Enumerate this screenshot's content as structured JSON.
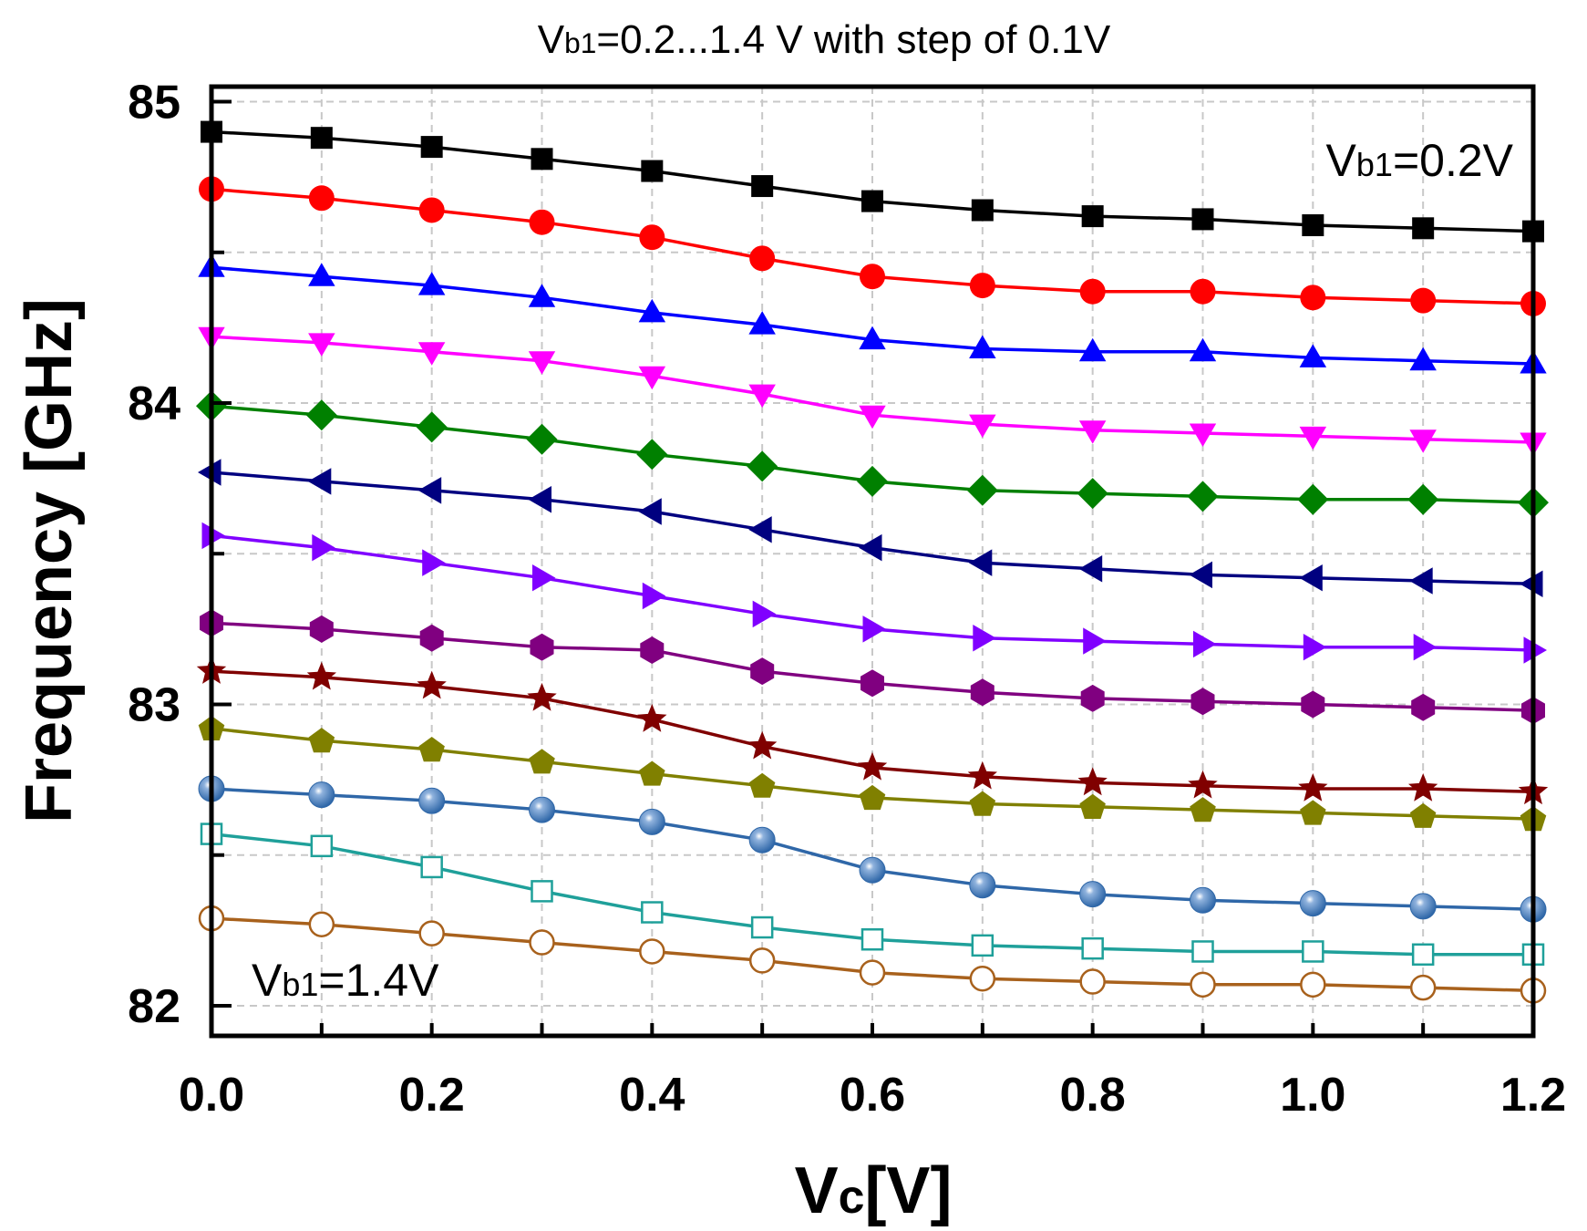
{
  "chart_data": {
    "type": "line",
    "title": {
      "prefix": "V",
      "sub": "b1",
      "suffix": "=0.2...1.4 V with step of 0.1V"
    },
    "xlabel": {
      "main": "V",
      "sub": "c",
      "suffix": "[V]"
    },
    "ylabel": "Frequency [GHz]",
    "xlim": [
      0.0,
      1.2
    ],
    "ylim": [
      81.9,
      85.05
    ],
    "xticks": [
      "0.0",
      "0.2",
      "0.4",
      "0.6",
      "0.8",
      "1.0",
      "1.2"
    ],
    "yticks": [
      "82",
      "83",
      "84",
      "85"
    ],
    "grid": true,
    "x": [
      0.0,
      0.1,
      0.2,
      0.3,
      0.4,
      0.5,
      0.6,
      0.7,
      0.8,
      0.9,
      1.0,
      1.1,
      1.2
    ],
    "series": [
      {
        "color": "#000000",
        "marker": "square",
        "values": [
          84.9,
          84.88,
          84.85,
          84.81,
          84.77,
          84.72,
          84.67,
          84.64,
          84.62,
          84.61,
          84.59,
          84.58,
          84.57
        ]
      },
      {
        "color": "#ff0000",
        "marker": "circle",
        "values": [
          84.71,
          84.68,
          84.64,
          84.6,
          84.55,
          84.48,
          84.42,
          84.39,
          84.37,
          84.37,
          84.35,
          84.34,
          84.33
        ]
      },
      {
        "color": "#0000ff",
        "marker": "triangle-up",
        "values": [
          84.45,
          84.42,
          84.39,
          84.35,
          84.3,
          84.26,
          84.21,
          84.18,
          84.17,
          84.17,
          84.15,
          84.14,
          84.13
        ]
      },
      {
        "color": "#ff00ff",
        "marker": "triangle-down",
        "values": [
          84.22,
          84.2,
          84.17,
          84.14,
          84.09,
          84.03,
          83.96,
          83.93,
          83.91,
          83.9,
          83.89,
          83.88,
          83.87
        ]
      },
      {
        "color": "#008000",
        "marker": "diamond",
        "values": [
          83.99,
          83.96,
          83.92,
          83.88,
          83.83,
          83.79,
          83.74,
          83.71,
          83.7,
          83.69,
          83.68,
          83.68,
          83.67
        ]
      },
      {
        "color": "#000080",
        "marker": "triangle-left",
        "values": [
          83.77,
          83.74,
          83.71,
          83.68,
          83.64,
          83.58,
          83.52,
          83.47,
          83.45,
          83.43,
          83.42,
          83.41,
          83.4
        ]
      },
      {
        "color": "#8000ff",
        "marker": "triangle-right",
        "values": [
          83.56,
          83.52,
          83.47,
          83.42,
          83.36,
          83.3,
          83.25,
          83.22,
          83.21,
          83.2,
          83.19,
          83.19,
          83.18
        ]
      },
      {
        "color": "#800080",
        "marker": "hexagon",
        "values": [
          83.27,
          83.25,
          83.22,
          83.19,
          83.18,
          83.11,
          83.07,
          83.04,
          83.02,
          83.01,
          83.0,
          82.99,
          82.98
        ]
      },
      {
        "color": "#800000",
        "marker": "star",
        "values": [
          83.11,
          83.09,
          83.06,
          83.02,
          82.95,
          82.86,
          82.79,
          82.76,
          82.74,
          82.73,
          82.72,
          82.72,
          82.71
        ]
      },
      {
        "color": "#808000",
        "marker": "pentagon",
        "values": [
          82.92,
          82.88,
          82.85,
          82.81,
          82.77,
          82.73,
          82.69,
          82.67,
          82.66,
          82.65,
          82.64,
          82.63,
          82.62
        ]
      },
      {
        "color": "#2f67a8",
        "marker": "sphere",
        "values": [
          82.72,
          82.7,
          82.68,
          82.65,
          82.61,
          82.55,
          82.45,
          82.4,
          82.37,
          82.35,
          82.34,
          82.33,
          82.32
        ]
      },
      {
        "color": "#1fa09a",
        "marker": "open-square",
        "values": [
          82.57,
          82.53,
          82.46,
          82.38,
          82.31,
          82.26,
          82.22,
          82.2,
          82.19,
          82.18,
          82.18,
          82.17,
          82.17
        ]
      },
      {
        "color": "#a8611c",
        "marker": "open-circle",
        "values": [
          82.29,
          82.27,
          82.24,
          82.21,
          82.18,
          82.15,
          82.11,
          82.09,
          82.08,
          82.07,
          82.07,
          82.06,
          82.05
        ]
      }
    ],
    "annotations": {
      "top": {
        "prefix": "V",
        "sub": "b1",
        "suffix": "=0.2V"
      },
      "bottom": {
        "prefix": "V",
        "sub": "b1",
        "suffix": "=1.4V"
      }
    }
  }
}
